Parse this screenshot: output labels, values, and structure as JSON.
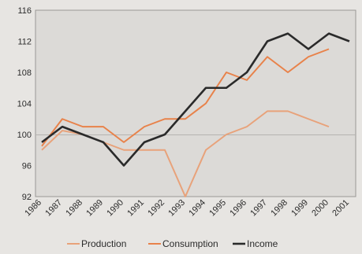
{
  "chart_data": {
    "type": "line",
    "title": "",
    "xlabel": "",
    "ylabel": "",
    "x": [
      "1986",
      "1987",
      "1988",
      "1989",
      "1990",
      "1991",
      "1992",
      "1993",
      "1994",
      "1995",
      "1996",
      "1997",
      "1998",
      "1999",
      "2000",
      "2001"
    ],
    "ylim": [
      92,
      116
    ],
    "yticks": [
      92,
      96,
      100,
      104,
      108,
      112,
      116
    ],
    "grid": "horizontal reference line at 100",
    "legend_position": "bottom",
    "series": [
      {
        "name": "Production",
        "color": "#e8a27a",
        "values": [
          98,
          100.5,
          100,
          99,
          98,
          98,
          98,
          92,
          98,
          100,
          101,
          103,
          103,
          102,
          101,
          null
        ]
      },
      {
        "name": "Consumption",
        "color": "#e8824a",
        "values": [
          98.5,
          102,
          101,
          101,
          99,
          101,
          102,
          102,
          104,
          108,
          107,
          110,
          108,
          110,
          111,
          null
        ]
      },
      {
        "name": "Income",
        "color": "#2a2a2a",
        "values": [
          99,
          101,
          100,
          99,
          96,
          99,
          100,
          103,
          106,
          106,
          108,
          112,
          113,
          111,
          113,
          112
        ]
      }
    ]
  }
}
